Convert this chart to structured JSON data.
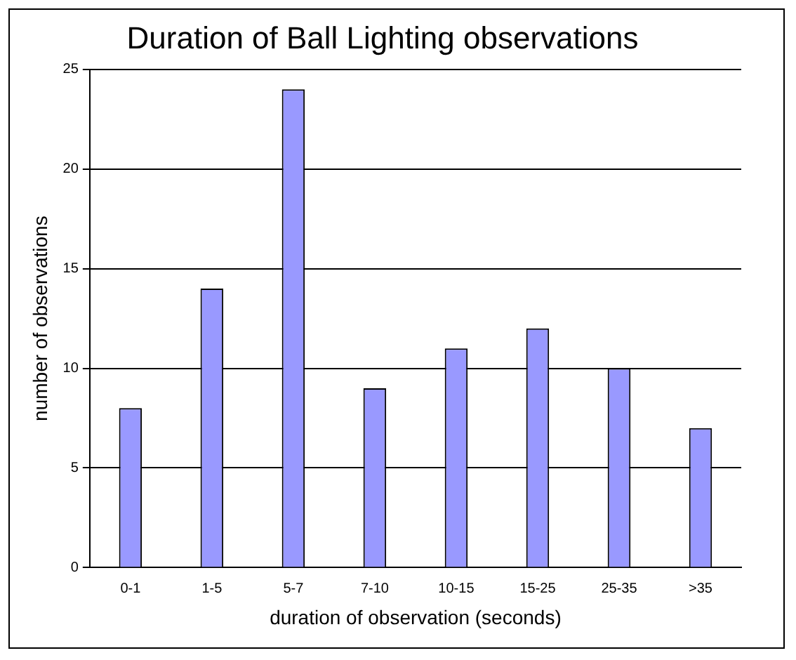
{
  "chart_data": {
    "type": "bar",
    "title": "Duration of Ball Lighting observations",
    "xlabel": "duration of observation (seconds)",
    "ylabel": "number of observations",
    "categories": [
      "0-1",
      "1-5",
      "5-7",
      "7-10",
      "10-15",
      "15-25",
      "25-35",
      ">35"
    ],
    "values": [
      8,
      14,
      24,
      9,
      11,
      12,
      10,
      7
    ],
    "color": "#9999ff",
    "ylim": [
      0,
      25
    ],
    "yticks": [
      0,
      5,
      10,
      15,
      20,
      25
    ],
    "grid": "y"
  }
}
